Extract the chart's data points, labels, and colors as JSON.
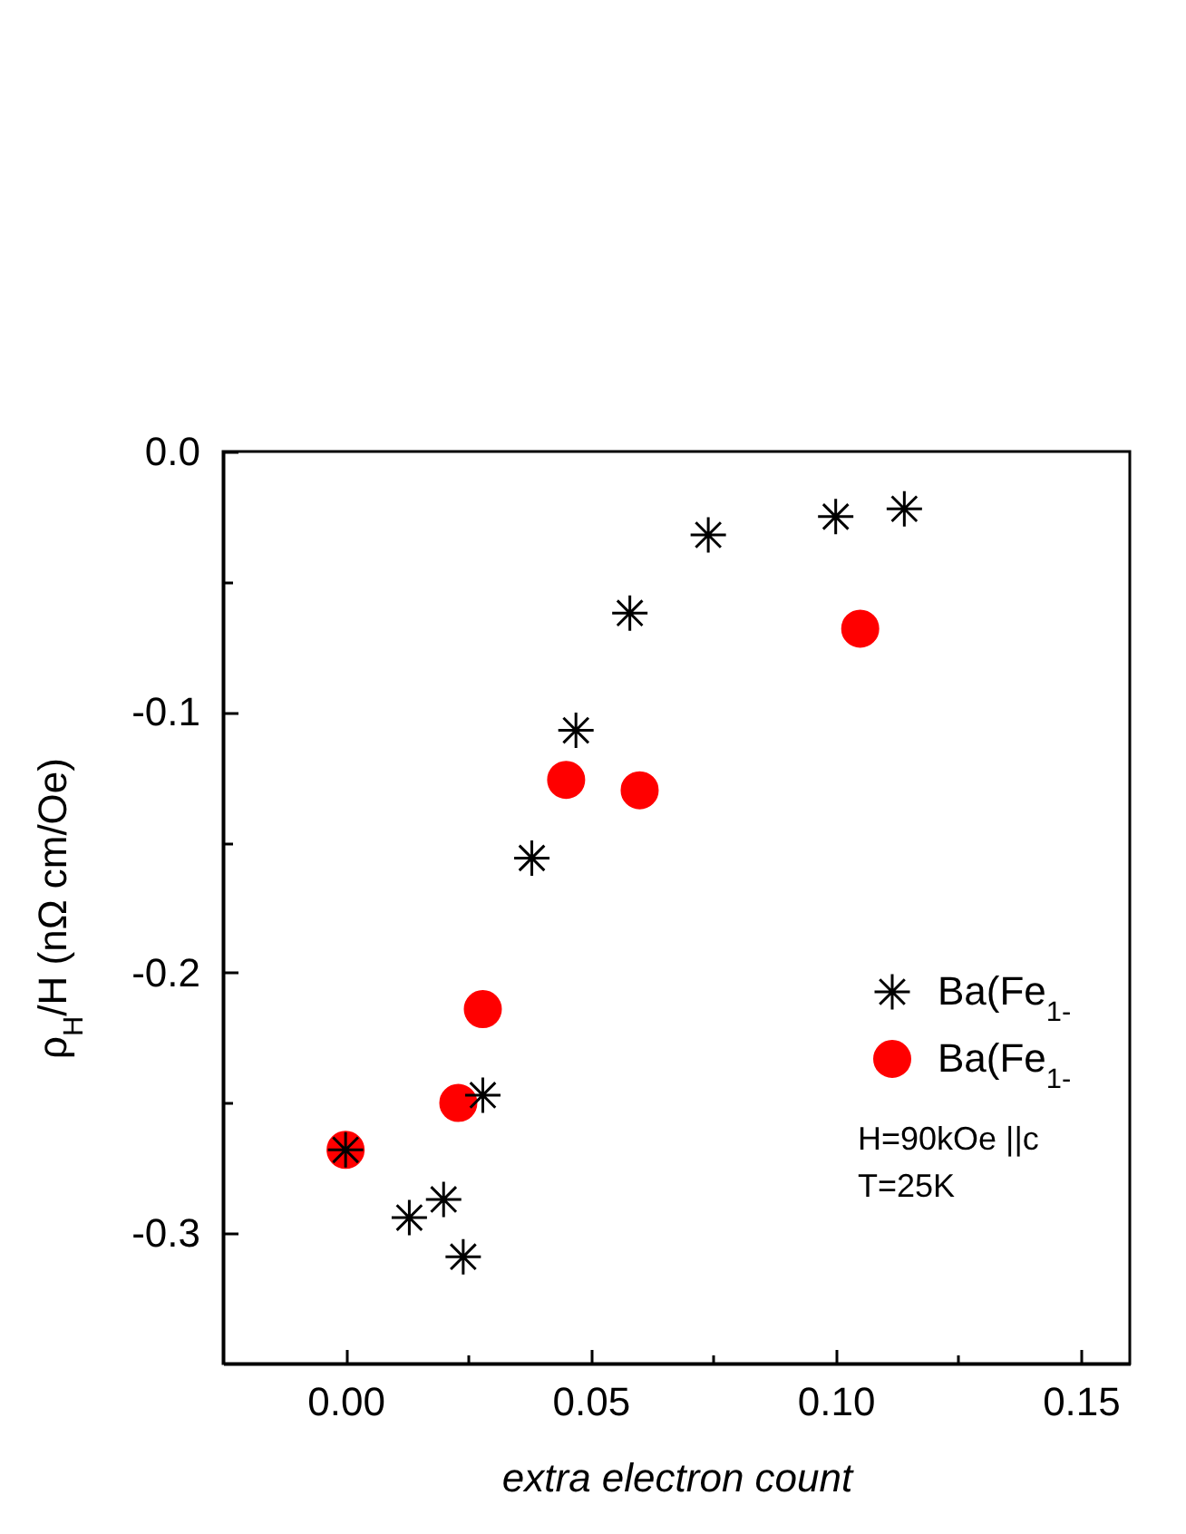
{
  "chart_data": {
    "type": "scatter",
    "xlabel": "extra electron count",
    "ylabel": "ρ$_{H}$/H (nΩ cm/Oe)",
    "annotations": [
      "H=90kOe ||c",
      "T=25K"
    ],
    "series": [
      {
        "name": "Ba(Fe$_{1-}$",
        "color": "#000000",
        "marker": "cross",
        "x": [
          0.0,
          0.013,
          0.02,
          0.024,
          0.028,
          0.038,
          0.047,
          0.058,
          0.074,
          0.1,
          0.114
        ],
        "values": [
          -0.268,
          -0.294,
          -0.287,
          -0.309,
          -0.247,
          -0.156,
          -0.107,
          -0.062,
          -0.032,
          -0.025,
          -0.022
        ]
      },
      {
        "name": "Ba(Fe$_{1-}$",
        "color": "#ff0000",
        "marker": "circle",
        "x": [
          0.0,
          0.023,
          0.028,
          0.045,
          0.06,
          0.105
        ],
        "values": [
          -0.268,
          -0.25,
          -0.214,
          -0.126,
          -0.13,
          -0.068
        ]
      }
    ],
    "xlim": [
      -0.025,
      0.16
    ],
    "xticks": [
      {
        "value": 0,
        "label": "0.00"
      },
      {
        "value": 0.025,
        "label": null
      },
      0.05,
      {
        "value": 0.075,
        "label": null
      },
      {
        "value": 0.1,
        "label": "0.10"
      },
      {
        "value": 0.125,
        "label": null
      },
      0.15
    ],
    "ylim": [
      -0.35,
      0
    ],
    "yticks": [
      -0.3,
      {
        "value": -0.25,
        "label": null
      },
      -0.2,
      {
        "value": -0.15,
        "label": null
      },
      -0.1,
      {
        "value": -0.05,
        "label": null
      },
      {
        "value": 0,
        "label": "0.0"
      }
    ],
    "legend": "right"
  }
}
